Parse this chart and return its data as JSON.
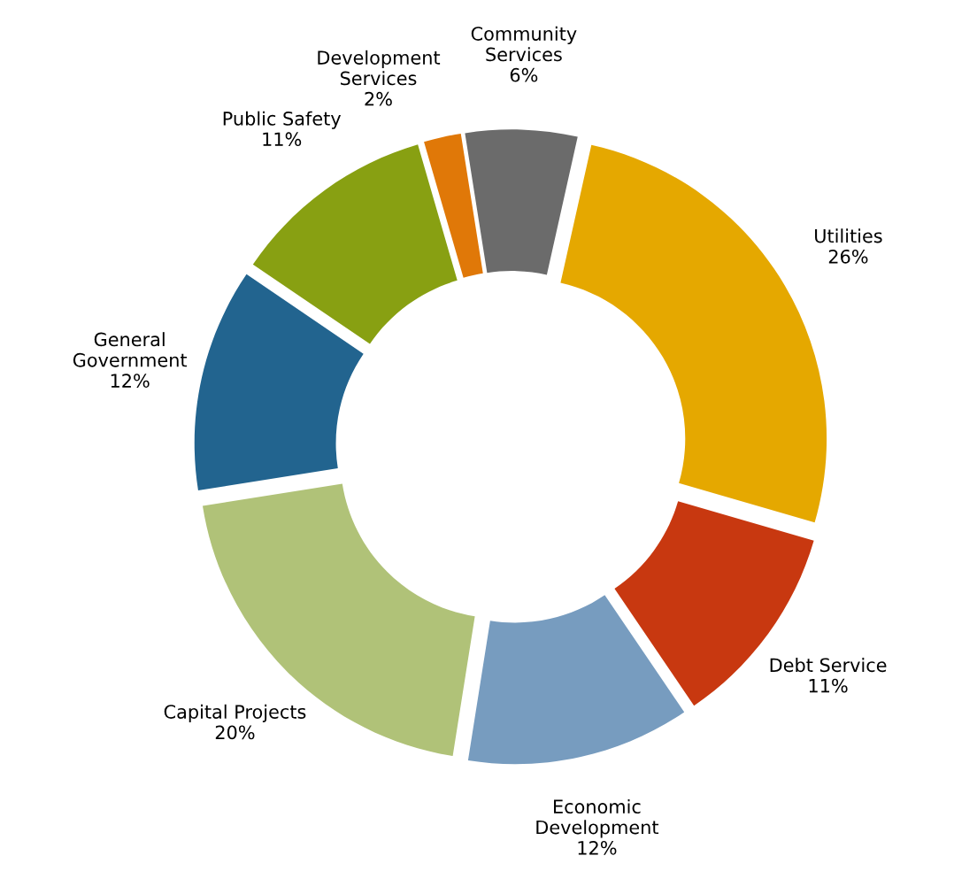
{
  "chart_data": {
    "type": "donut",
    "categories": [
      "Community Services",
      "Utilities",
      "Debt Service",
      "Economic Development",
      "Capital Projects",
      "General Government",
      "Public Safety",
      "Development Services"
    ],
    "values": [
      6,
      26,
      11,
      12,
      20,
      12,
      11,
      2
    ],
    "value_labels": [
      "6%",
      "26%",
      "11%",
      "12%",
      "20%",
      "12%",
      "11%",
      "2%"
    ],
    "colors": [
      "#6b6b6b",
      "#e5a800",
      "#c83810",
      "#779cbf",
      "#b0c278",
      "#22648f",
      "#88a012",
      "#e07808"
    ],
    "legend": false
  }
}
